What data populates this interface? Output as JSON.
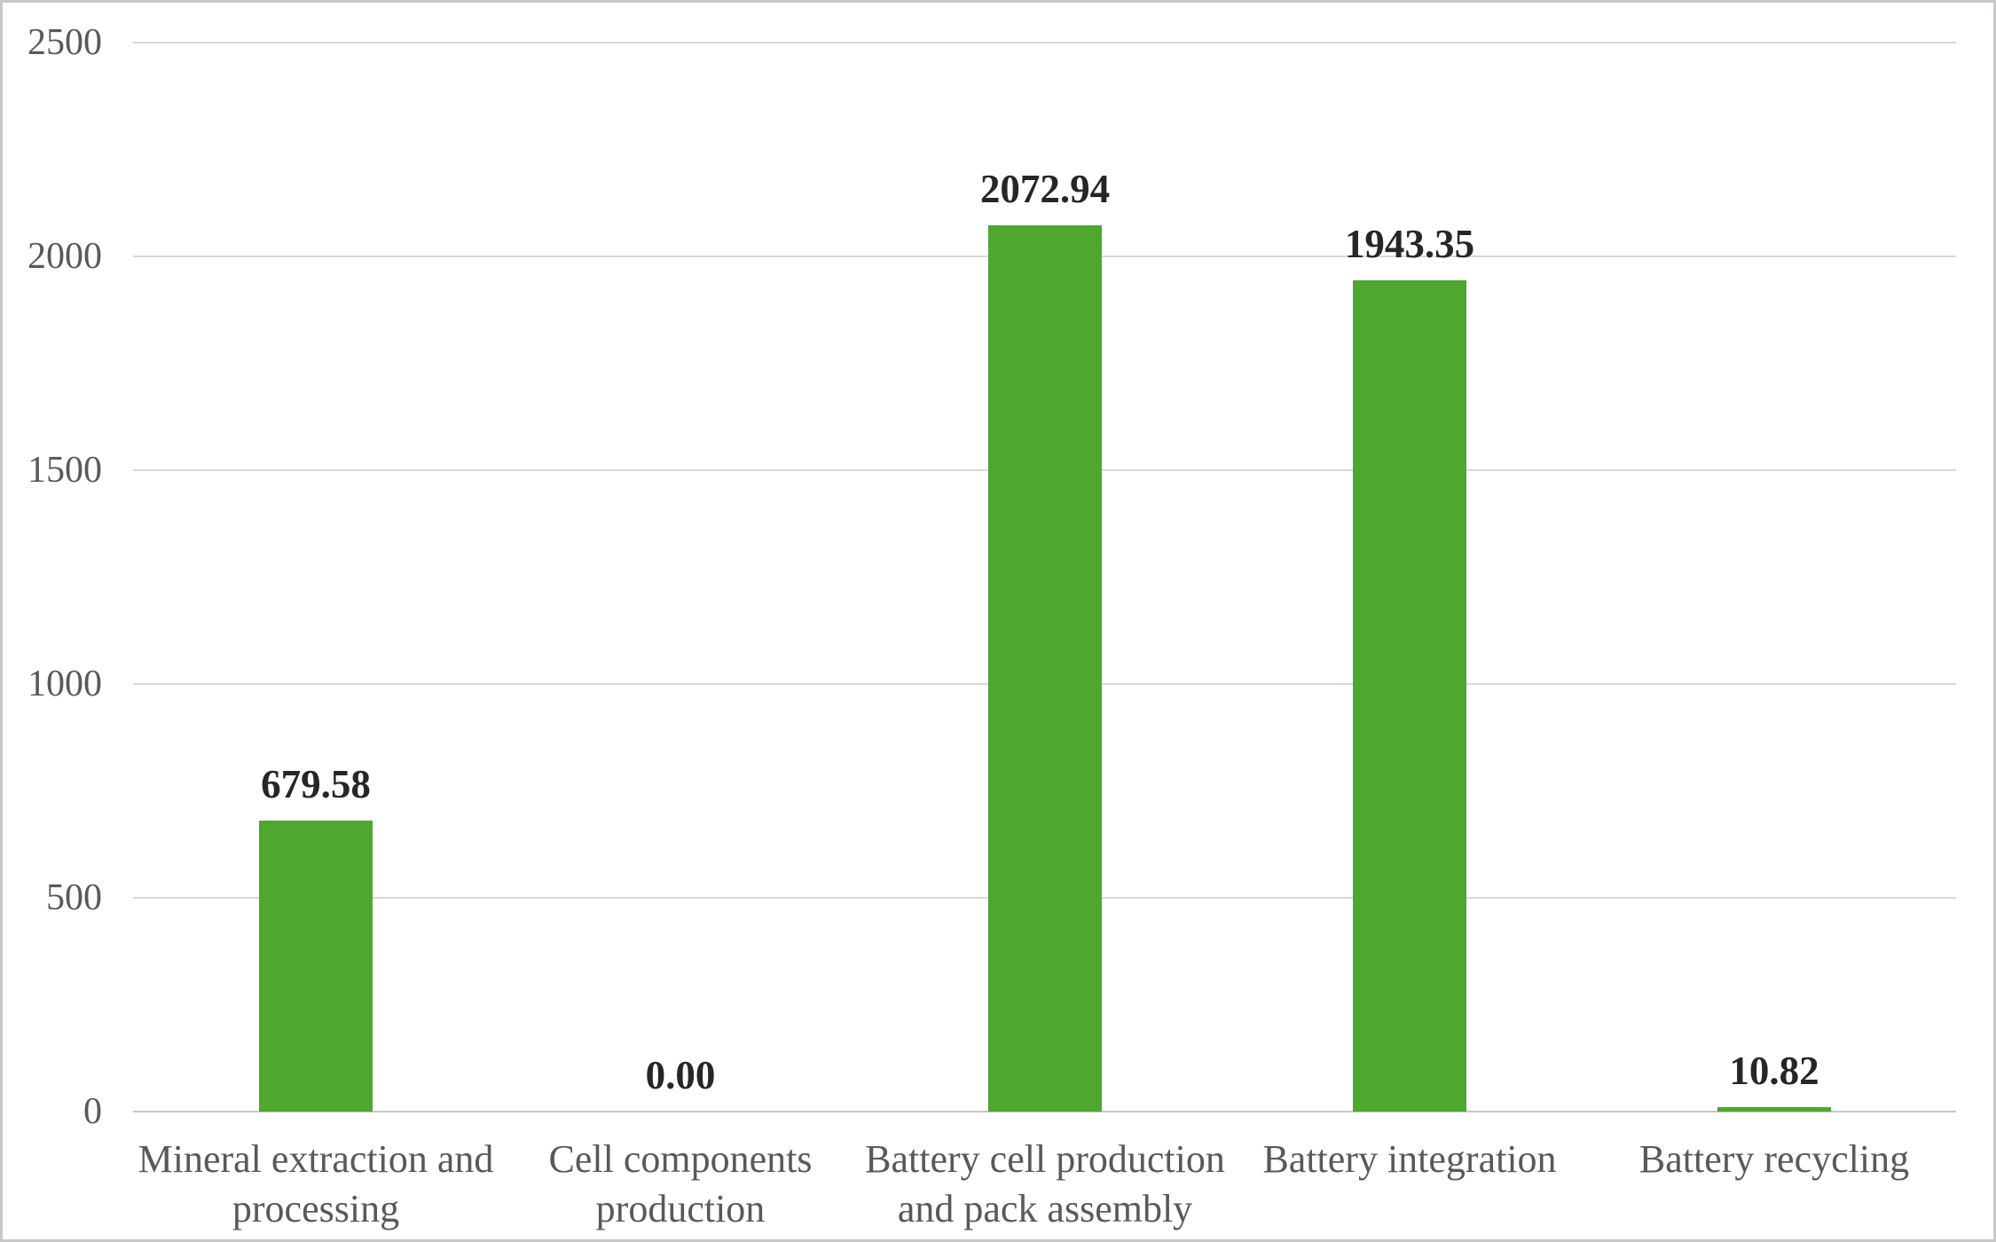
{
  "chart_data": {
    "type": "bar",
    "title": "",
    "xlabel": "",
    "ylabel": "",
    "categories": [
      "Mineral extraction and processing",
      "Cell components production",
      "Battery cell production and pack assembly",
      "Battery integration",
      "Battery recycling"
    ],
    "category_lines": [
      [
        "Mineral extraction and",
        "processing"
      ],
      [
        "Cell components",
        "production"
      ],
      [
        "Battery cell production",
        "and pack assembly"
      ],
      [
        "Battery integration"
      ],
      [
        "Battery recycling"
      ]
    ],
    "values": [
      679.58,
      0.0,
      2072.94,
      1943.35,
      10.82
    ],
    "value_labels": [
      "679.58",
      "0.00",
      "2072.94",
      "1943.35",
      "10.82"
    ],
    "yticks": [
      0,
      500,
      1000,
      1500,
      2000,
      2500
    ],
    "ytick_labels": [
      "0",
      "500",
      "1000",
      "1500",
      "2000",
      "2500"
    ],
    "ylim": [
      0,
      2500
    ],
    "grid": true,
    "legend": false,
    "colors": {
      "bar": "#4EA72E",
      "value_label": "#262626",
      "axis_text": "#595959",
      "gridline": "#D9D9D9",
      "axis_line": "#C6C6C6",
      "frame_border": "#C9C7C7",
      "background": "#FFFFFF"
    }
  }
}
